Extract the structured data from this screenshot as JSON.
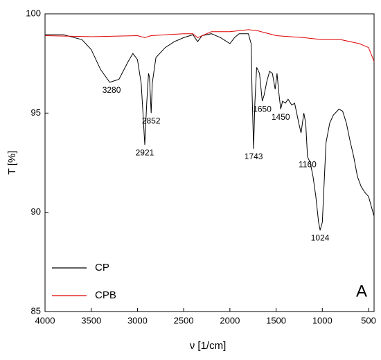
{
  "chart_data": {
    "type": "line",
    "xlabel": "ν [1/cm]",
    "ylabel": "T [%]",
    "xlim": [
      4000,
      440
    ],
    "ylim": [
      85,
      100
    ],
    "xticks": [
      4000,
      3500,
      3000,
      2500,
      2000,
      1500,
      1000,
      500
    ],
    "yticks": [
      85,
      90,
      95,
      100
    ],
    "legend": "lower left",
    "panel_label": "A",
    "series": [
      {
        "name": "CP",
        "color": "#000000",
        "x": [
          4000,
          3800,
          3600,
          3500,
          3400,
          3300,
          3200,
          3100,
          3050,
          3000,
          2960,
          2940,
          2921,
          2900,
          2880,
          2870,
          2852,
          2840,
          2800,
          2700,
          2600,
          2500,
          2400,
          2350,
          2300,
          2200,
          2100,
          2000,
          1950,
          1900,
          1800,
          1770,
          1760,
          1743,
          1730,
          1710,
          1680,
          1650,
          1630,
          1600,
          1570,
          1540,
          1510,
          1490,
          1470,
          1450,
          1430,
          1400,
          1370,
          1330,
          1300,
          1250,
          1230,
          1200,
          1180,
          1160,
          1130,
          1100,
          1070,
          1040,
          1024,
          1000,
          960,
          920,
          880,
          820,
          780,
          740,
          700,
          660,
          620,
          580,
          540,
          500,
          470,
          440
        ],
        "values": [
          98.95,
          98.95,
          98.7,
          98.2,
          97.2,
          96.55,
          96.7,
          97.6,
          98.0,
          97.7,
          96.5,
          95.0,
          93.4,
          95.5,
          97.0,
          96.8,
          95.0,
          96.5,
          97.8,
          98.3,
          98.6,
          98.8,
          98.95,
          98.6,
          98.9,
          99.0,
          98.8,
          98.5,
          98.8,
          99.0,
          99.0,
          98.5,
          96.0,
          93.2,
          95.5,
          97.3,
          97.0,
          95.6,
          95.9,
          96.6,
          97.1,
          97.0,
          96.2,
          97.0,
          96.0,
          95.2,
          95.6,
          95.5,
          95.7,
          95.4,
          95.5,
          94.4,
          94.0,
          95.0,
          94.5,
          92.8,
          92.5,
          91.8,
          90.8,
          89.5,
          89.1,
          89.5,
          93.5,
          94.5,
          94.9,
          95.2,
          95.1,
          94.5,
          93.6,
          92.8,
          91.8,
          91.3,
          91.0,
          90.8,
          90.3,
          89.8
        ]
      },
      {
        "name": "CPB",
        "color": "#e00000",
        "x": [
          4000,
          3500,
          3000,
          2921,
          2852,
          2500,
          2400,
          2350,
          2200,
          2000,
          1800,
          1700,
          1500,
          1200,
          1000,
          800,
          600,
          500,
          440
        ],
        "values": [
          98.9,
          98.85,
          98.9,
          98.8,
          98.9,
          99.0,
          99.0,
          98.8,
          99.1,
          99.1,
          99.2,
          99.15,
          98.9,
          98.8,
          98.7,
          98.7,
          98.5,
          98.3,
          97.6
        ]
      }
    ],
    "annotations": [
      {
        "text": "3280",
        "x": 3280,
        "y": 96.55
      },
      {
        "text": "2921",
        "x": 2921,
        "y": 93.4
      },
      {
        "text": "2852",
        "x": 2852,
        "y": 95.0
      },
      {
        "text": "1743",
        "x": 1743,
        "y": 93.2
      },
      {
        "text": "1650",
        "x": 1650,
        "y": 95.6
      },
      {
        "text": "1450",
        "x": 1450,
        "y": 95.2
      },
      {
        "text": "1160",
        "x": 1160,
        "y": 92.8
      },
      {
        "text": "1024",
        "x": 1024,
        "y": 89.1
      }
    ]
  }
}
